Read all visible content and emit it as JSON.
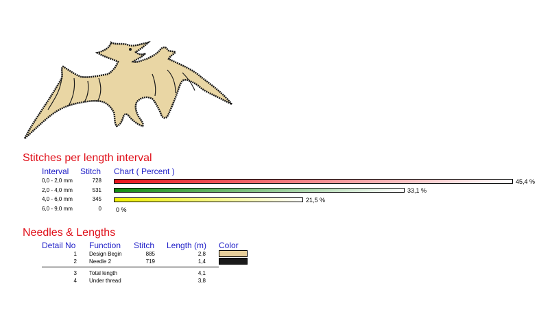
{
  "design": {
    "icon": "pterodactyl-embroidery-design"
  },
  "stitches_section": {
    "title": "Stitches per length interval",
    "headers": {
      "interval": "Interval",
      "stitch": "Stitch",
      "chart": "Chart ( Percent )"
    }
  },
  "chart_data": {
    "type": "bar",
    "title": "Stitches per length interval",
    "orientation": "horizontal",
    "categories": [
      "0,0 - 2,0 mm",
      "2,0 - 4,0 mm",
      "4,0 - 6,0 mm",
      "6,0 - 9,0 mm"
    ],
    "stitches": [
      "728",
      "531",
      "345",
      "0"
    ],
    "values": [
      45.4,
      33.1,
      21.5,
      0
    ],
    "percent_labels": [
      "45,4 %",
      "33,1 %",
      "21,5 %",
      "0 %"
    ],
    "bar_colors": [
      [
        "#e8141c",
        "#ffffff"
      ],
      [
        "#108a10",
        "#ffffff"
      ],
      [
        "#f0f000",
        "#ffffff"
      ],
      [
        "#ffffff",
        "#ffffff"
      ]
    ]
  },
  "needles_section": {
    "title": "Needles & Lengths",
    "headers": {
      "detail": "Detail No",
      "function": "Function",
      "stitch": "Stitch",
      "length": "Length (m)",
      "color": "Color"
    },
    "rows": [
      {
        "no": "1",
        "function": "Design Begin",
        "stitch": "885",
        "length": "2,8",
        "color": "#e8cf9a"
      },
      {
        "no": "2",
        "function": "Needle 2",
        "stitch": "719",
        "length": "1,4",
        "color": "#1a1a1a"
      }
    ],
    "totals": [
      {
        "no": "3",
        "function": "Total length",
        "length": "4,1"
      },
      {
        "no": "4",
        "function": "Under thread",
        "length": "3,8"
      }
    ]
  }
}
